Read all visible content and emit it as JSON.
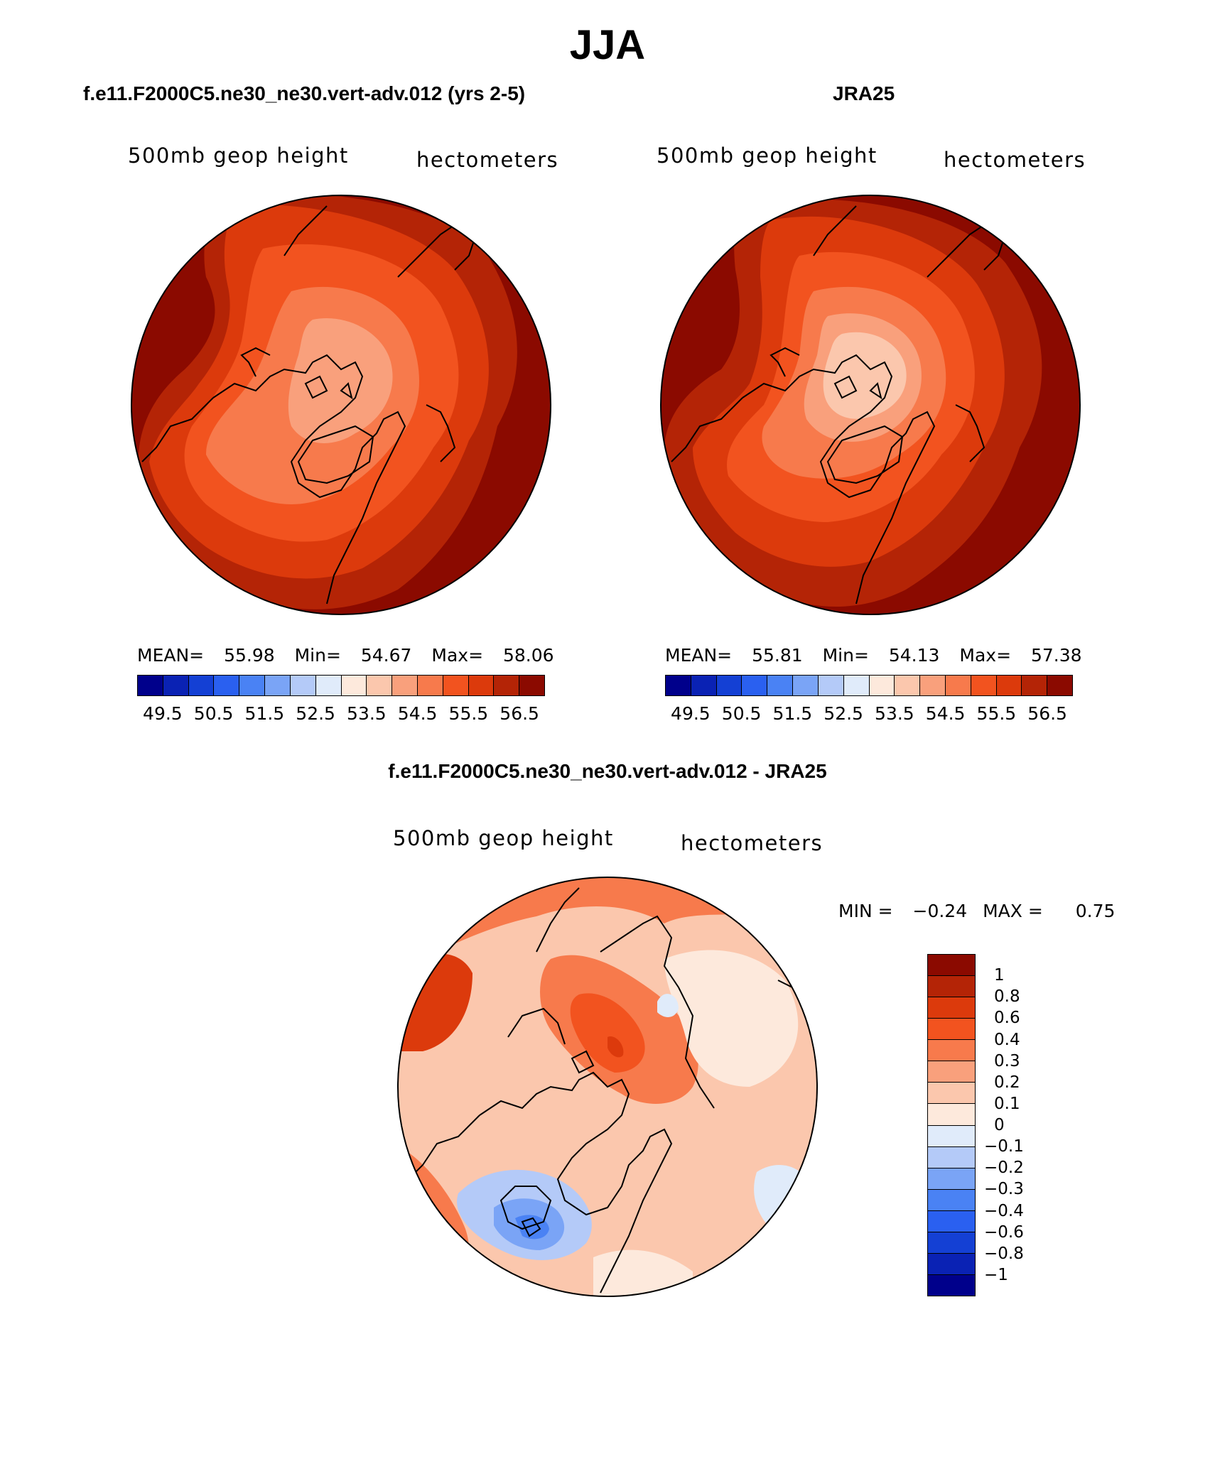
{
  "page": {
    "title": "JJA",
    "difference_title": "f.e11.F2000C5.ne30_ne30.vert-adv.012 - JRA25"
  },
  "panels": {
    "model": {
      "title": "f.e11.F2000C5.ne30_ne30.vert-adv.012 (yrs 2-5)",
      "variable": "500mb geop height",
      "units": "hectometers",
      "mean_label": "MEAN=",
      "mean": "55.98",
      "min_label": "Min=",
      "min": "54.67",
      "max_label": "Max=",
      "max": "58.06"
    },
    "obs": {
      "title": "JRA25",
      "variable": "500mb geop height",
      "units": "hectometers",
      "mean_label": "MEAN=",
      "mean": "55.81",
      "min_label": "Min=",
      "min": "54.13",
      "max_label": "Max=",
      "max": "57.38"
    },
    "diff": {
      "variable": "500mb geop height",
      "units": "hectometers",
      "min_label": "MIN =",
      "min": "−0.24",
      "max_label": "MAX =",
      "max": "0.75"
    }
  },
  "colorbar_abs": {
    "ticks": [
      "49.5",
      "50.5",
      "51.5",
      "52.5",
      "53.5",
      "54.5",
      "55.5",
      "56.5"
    ],
    "colors": [
      "#00008b",
      "#0a22b4",
      "#1440d4",
      "#2a60f0",
      "#4a82f4",
      "#7aa4f6",
      "#b4caf8",
      "#e0ebfa",
      "#fde9dc",
      "#fbc7ad",
      "#f9a07c",
      "#f77a4c",
      "#f2531f",
      "#dc3a0c",
      "#b42406",
      "#8b0a00"
    ]
  },
  "colorbar_diff": {
    "labels": [
      "1",
      "0.8",
      "0.6",
      "0.4",
      "0.3",
      "0.2",
      "0.1",
      "0",
      "−0.1",
      "−0.2",
      "−0.3",
      "−0.4",
      "−0.6",
      "−0.8",
      "−1"
    ],
    "colors": [
      "#8b0a00",
      "#b42406",
      "#dc3a0c",
      "#f2531f",
      "#f77a4c",
      "#f9a07c",
      "#fbc7ad",
      "#fde9dc",
      "#e0ebfa",
      "#b4caf8",
      "#7aa4f6",
      "#4a82f4",
      "#2a60f0",
      "#1440d4",
      "#0a22b4",
      "#00008b"
    ]
  }
}
